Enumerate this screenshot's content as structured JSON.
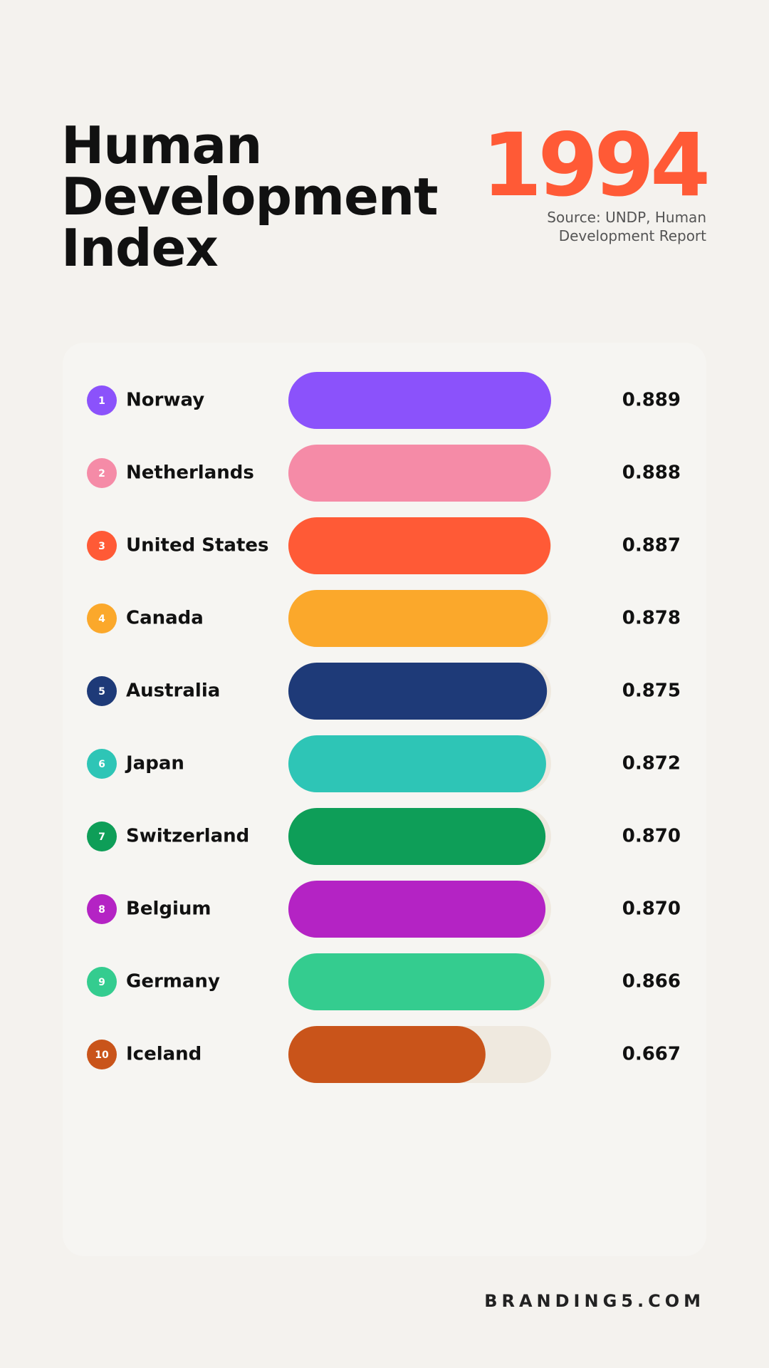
{
  "chart_data": {
    "type": "bar",
    "title": "Human Development Index",
    "year": "1994",
    "source": "Source: UNDP, Human Development Report",
    "footer": "BRANDING5.COM",
    "ranks": [
      1,
      2,
      3,
      4,
      5,
      6,
      7,
      8,
      9,
      10
    ],
    "categories": [
      "Norway",
      "Netherlands",
      "United States",
      "Canada",
      "Australia",
      "Japan",
      "Switzerland",
      "Belgium",
      "Germany",
      "Iceland"
    ],
    "values": [
      0.889,
      0.888,
      0.887,
      0.878,
      0.875,
      0.872,
      0.87,
      0.87,
      0.866,
      0.667
    ],
    "value_labels": [
      "0.889",
      "0.888",
      "0.887",
      "0.878",
      "0.875",
      "0.872",
      "0.870",
      "0.870",
      "0.866",
      "0.667"
    ],
    "colors": [
      "#8b52fb",
      "#f58ba7",
      "#ff5a36",
      "#fba82b",
      "#1e3a78",
      "#2ec5b6",
      "#0e9e58",
      "#b423c4",
      "#34cc8f",
      "#c9541a"
    ],
    "xlim": [
      0,
      0.889
    ]
  }
}
